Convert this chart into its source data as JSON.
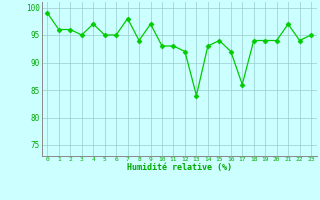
{
  "x": [
    0,
    1,
    2,
    3,
    4,
    5,
    6,
    7,
    8,
    9,
    10,
    11,
    12,
    13,
    14,
    15,
    16,
    17,
    18,
    19,
    20,
    21,
    22,
    23
  ],
  "y": [
    99,
    96,
    96,
    95,
    97,
    95,
    95,
    98,
    94,
    97,
    93,
    93,
    92,
    84,
    93,
    94,
    92,
    86,
    94,
    94,
    94,
    97,
    94,
    95
  ],
  "line_color": "#00cc00",
  "marker_color": "#00cc00",
  "bg_color": "#ccffff",
  "grid_color": "#99cccc",
  "axis_color": "#888888",
  "text_color": "#00aa00",
  "xlabel": "Humidité relative (%)",
  "ylim": [
    73,
    101
  ],
  "xlim": [
    -0.5,
    23.5
  ],
  "yticks": [
    75,
    80,
    85,
    90,
    95,
    100
  ],
  "xticks": [
    0,
    1,
    2,
    3,
    4,
    5,
    6,
    7,
    8,
    9,
    10,
    11,
    12,
    13,
    14,
    15,
    16,
    17,
    18,
    19,
    20,
    21,
    22,
    23
  ]
}
